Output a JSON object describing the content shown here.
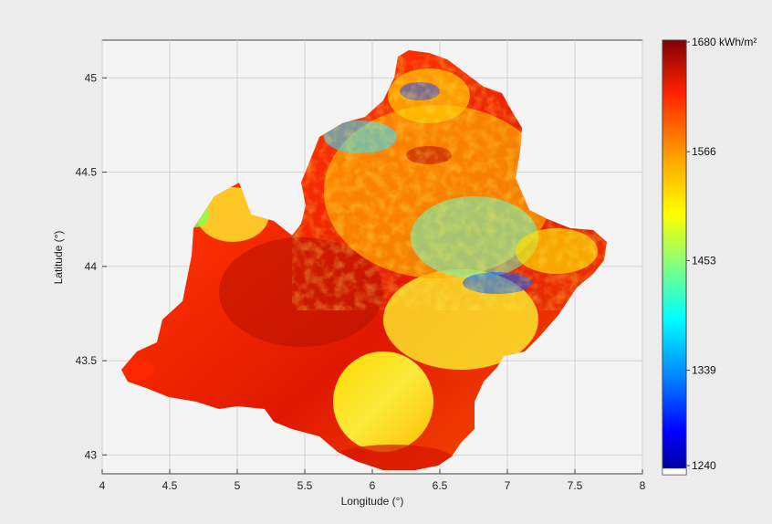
{
  "chart_data": {
    "type": "heatmap",
    "title": "",
    "xlabel": "Longitude (°)",
    "ylabel": "Latitude (°)",
    "xlim": [
      4,
      8
    ],
    "ylim": [
      42.9,
      45.2
    ],
    "x_ticks": [
      "4",
      "4.5",
      "5",
      "5.5",
      "6",
      "6.5",
      "7",
      "7.5",
      "8"
    ],
    "y_ticks": [
      "43",
      "43.5",
      "44",
      "44.5",
      "45"
    ],
    "grid": true,
    "colorbar": {
      "range": [
        1240,
        1680
      ],
      "tick_labels": [
        "1680 kWh/m²",
        "1566",
        "1453",
        "1339",
        "1240"
      ],
      "colors": [
        "#800000",
        "#ff2200",
        "#ffaa00",
        "#ffff00",
        "#7fff7f",
        "#00ffff",
        "#0080ff",
        "#0000ff",
        "#00008f"
      ]
    }
  }
}
